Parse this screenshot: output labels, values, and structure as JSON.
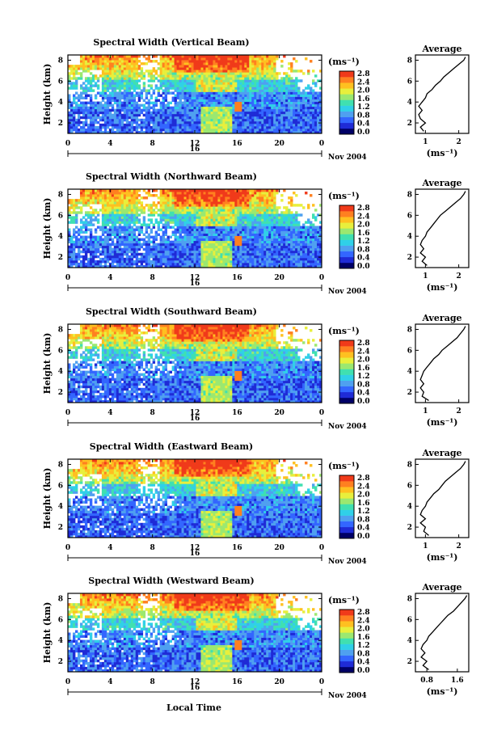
{
  "figure": {
    "xlabel": "Local Time"
  },
  "colors": {
    "scale": [
      "#000066",
      "#1f2bd6",
      "#3366ff",
      "#4fa0f0",
      "#30d0e8",
      "#40e0b0",
      "#9be870",
      "#e8ef3c",
      "#ffc020",
      "#ff8020",
      "#f03a1a"
    ]
  },
  "chart_data": [
    {
      "type": "heatmap",
      "title": "Spectral Width (Vertical Beam)",
      "ylabel": "Height (km)",
      "y_ticks": [
        "2",
        "4",
        "6",
        "8"
      ],
      "x_ticks": [
        "0",
        "4",
        "8",
        "12",
        "16",
        "20",
        "0"
      ],
      "xlim": [
        0,
        24
      ],
      "ylim": [
        1,
        8.5
      ],
      "date_day": "16",
      "date_month": "Nov 2004",
      "colorbar": {
        "unit": "(ms⁻¹)",
        "ticks": [
          "2.8",
          "2.4",
          "2.0",
          "1.6",
          "1.2",
          "0.8",
          "0.4",
          "0.0"
        ],
        "range": [
          0,
          2.8
        ]
      },
      "average": {
        "title": "Average",
        "xlabel": "(ms⁻¹)",
        "x_ticks": [
          "1",
          "2"
        ],
        "y_ticks": [
          "2",
          "4",
          "6",
          "8"
        ],
        "xlim": [
          0.7,
          2.3
        ],
        "ylim": [
          1,
          8.5
        ],
        "profile": [
          [
            0.95,
            1.2
          ],
          [
            0.85,
            1.6
          ],
          [
            1.0,
            2.0
          ],
          [
            0.85,
            2.4
          ],
          [
            0.8,
            2.8
          ],
          [
            0.9,
            3.2
          ],
          [
            0.8,
            3.6
          ],
          [
            0.9,
            4.0
          ],
          [
            1.0,
            4.4
          ],
          [
            1.05,
            4.8
          ],
          [
            1.2,
            5.2
          ],
          [
            1.3,
            5.6
          ],
          [
            1.45,
            6.0
          ],
          [
            1.55,
            6.4
          ],
          [
            1.7,
            6.8
          ],
          [
            1.85,
            7.2
          ],
          [
            2.0,
            7.6
          ],
          [
            2.15,
            8.0
          ],
          [
            2.2,
            8.3
          ]
        ]
      }
    },
    {
      "type": "heatmap",
      "title": "Spectral Width (Northward Beam)",
      "ylabel": "Height (km)",
      "y_ticks": [
        "2",
        "4",
        "6",
        "8"
      ],
      "x_ticks": [
        "0",
        "4",
        "8",
        "12",
        "16",
        "20",
        "0"
      ],
      "xlim": [
        0,
        24
      ],
      "ylim": [
        1,
        8.5
      ],
      "date_day": "16",
      "date_month": "Nov 2004",
      "colorbar": {
        "unit": "(ms⁻¹)",
        "ticks": [
          "2.8",
          "2.4",
          "2.0",
          "1.6",
          "1.2",
          "0.8",
          "0.4",
          "0.0"
        ],
        "range": [
          0,
          2.8
        ]
      },
      "average": {
        "title": "Average",
        "xlabel": "(ms⁻¹)",
        "x_ticks": [
          "1",
          "2"
        ],
        "y_ticks": [
          "2",
          "4",
          "6",
          "8"
        ],
        "xlim": [
          0.7,
          2.3
        ],
        "ylim": [
          1,
          8.5
        ],
        "profile": [
          [
            1.05,
            1.2
          ],
          [
            0.9,
            1.6
          ],
          [
            1.0,
            2.0
          ],
          [
            0.85,
            2.4
          ],
          [
            0.95,
            2.8
          ],
          [
            0.85,
            3.2
          ],
          [
            0.9,
            3.6
          ],
          [
            1.0,
            4.0
          ],
          [
            1.05,
            4.4
          ],
          [
            1.15,
            4.8
          ],
          [
            1.25,
            5.2
          ],
          [
            1.35,
            5.6
          ],
          [
            1.45,
            6.0
          ],
          [
            1.6,
            6.4
          ],
          [
            1.75,
            6.8
          ],
          [
            1.9,
            7.2
          ],
          [
            2.05,
            7.6
          ],
          [
            2.15,
            8.0
          ],
          [
            2.2,
            8.3
          ]
        ]
      }
    },
    {
      "type": "heatmap",
      "title": "Spectral Width (Southward Beam)",
      "ylabel": "Height (km)",
      "y_ticks": [
        "2",
        "4",
        "6",
        "8"
      ],
      "x_ticks": [
        "0",
        "4",
        "8",
        "12",
        "16",
        "20",
        "0"
      ],
      "xlim": [
        0,
        24
      ],
      "ylim": [
        1,
        8.5
      ],
      "date_day": "16",
      "date_month": "Nov 2004",
      "colorbar": {
        "unit": "(ms⁻¹)",
        "ticks": [
          "2.8",
          "2.4",
          "2.0",
          "1.6",
          "1.2",
          "0.8",
          "0.4",
          "0.0"
        ],
        "range": [
          0,
          2.8
        ]
      },
      "average": {
        "title": "Average",
        "xlabel": "(ms⁻¹)",
        "x_ticks": [
          "1",
          "2"
        ],
        "y_ticks": [
          "2",
          "4",
          "6",
          "8"
        ],
        "xlim": [
          0.7,
          2.3
        ],
        "ylim": [
          1,
          8.5
        ],
        "profile": [
          [
            1.1,
            1.2
          ],
          [
            0.9,
            1.6
          ],
          [
            0.95,
            2.0
          ],
          [
            0.85,
            2.4
          ],
          [
            0.95,
            2.8
          ],
          [
            0.85,
            3.2
          ],
          [
            0.9,
            3.6
          ],
          [
            0.95,
            4.0
          ],
          [
            1.05,
            4.4
          ],
          [
            1.15,
            4.8
          ],
          [
            1.25,
            5.2
          ],
          [
            1.4,
            5.6
          ],
          [
            1.5,
            6.0
          ],
          [
            1.65,
            6.4
          ],
          [
            1.8,
            6.8
          ],
          [
            1.95,
            7.2
          ],
          [
            2.05,
            7.6
          ],
          [
            2.15,
            8.0
          ],
          [
            2.2,
            8.3
          ]
        ]
      }
    },
    {
      "type": "heatmap",
      "title": "Spectral Width (Eastward Beam)",
      "ylabel": "Height (km)",
      "y_ticks": [
        "2",
        "4",
        "6",
        "8"
      ],
      "x_ticks": [
        "0",
        "4",
        "8",
        "12",
        "16",
        "20",
        "0"
      ],
      "xlim": [
        0,
        24
      ],
      "ylim": [
        1,
        8.5
      ],
      "date_day": "16",
      "date_month": "Nov 2004",
      "colorbar": {
        "unit": "(ms⁻¹)",
        "ticks": [
          "2.8",
          "2.4",
          "2.0",
          "1.6",
          "1.2",
          "0.8",
          "0.4",
          "0.0"
        ],
        "range": [
          0,
          2.8
        ]
      },
      "average": {
        "title": "Average",
        "xlabel": "(ms⁻¹)",
        "x_ticks": [
          "1",
          "2"
        ],
        "y_ticks": [
          "2",
          "4",
          "6",
          "8"
        ],
        "xlim": [
          0.7,
          2.3
        ],
        "ylim": [
          1,
          8.5
        ],
        "profile": [
          [
            1.1,
            1.2
          ],
          [
            0.95,
            1.6
          ],
          [
            1.0,
            2.0
          ],
          [
            0.85,
            2.4
          ],
          [
            1.0,
            2.8
          ],
          [
            0.85,
            3.2
          ],
          [
            0.9,
            3.6
          ],
          [
            1.0,
            4.0
          ],
          [
            1.05,
            4.4
          ],
          [
            1.15,
            4.8
          ],
          [
            1.25,
            5.2
          ],
          [
            1.4,
            5.6
          ],
          [
            1.5,
            6.0
          ],
          [
            1.6,
            6.4
          ],
          [
            1.75,
            6.8
          ],
          [
            1.9,
            7.2
          ],
          [
            2.05,
            7.6
          ],
          [
            2.15,
            8.0
          ],
          [
            2.2,
            8.3
          ]
        ]
      }
    },
    {
      "type": "heatmap",
      "title": "Spectral Width (Westward Beam)",
      "ylabel": "Height (km)",
      "y_ticks": [
        "2",
        "4",
        "6",
        "8"
      ],
      "x_ticks": [
        "0",
        "4",
        "8",
        "12",
        "16",
        "20",
        "0"
      ],
      "xlim": [
        0,
        24
      ],
      "ylim": [
        1,
        8.5
      ],
      "date_day": "16",
      "date_month": "Nov 2004",
      "colorbar": {
        "unit": "(ms⁻¹)",
        "ticks": [
          "2.8",
          "2.4",
          "2.0",
          "1.6",
          "1.2",
          "0.8",
          "0.4",
          "0.0"
        ],
        "range": [
          0,
          2.8
        ]
      },
      "average": {
        "title": "Average",
        "xlabel": "(ms⁻¹)",
        "x_ticks": [
          "0.8",
          "1.6"
        ],
        "y_ticks": [
          "2",
          "4",
          "6",
          "8"
        ],
        "xlim": [
          0.5,
          1.9
        ],
        "ylim": [
          1,
          8.5
        ],
        "profile": [
          [
            0.85,
            1.2
          ],
          [
            0.7,
            1.6
          ],
          [
            0.8,
            2.0
          ],
          [
            0.65,
            2.4
          ],
          [
            0.75,
            2.8
          ],
          [
            0.65,
            3.2
          ],
          [
            0.7,
            3.6
          ],
          [
            0.8,
            4.0
          ],
          [
            0.85,
            4.4
          ],
          [
            0.95,
            4.8
          ],
          [
            1.05,
            5.2
          ],
          [
            1.15,
            5.6
          ],
          [
            1.25,
            6.0
          ],
          [
            1.35,
            6.4
          ],
          [
            1.5,
            6.8
          ],
          [
            1.6,
            7.2
          ],
          [
            1.7,
            7.6
          ],
          [
            1.8,
            8.0
          ],
          [
            1.85,
            8.3
          ]
        ]
      }
    }
  ]
}
